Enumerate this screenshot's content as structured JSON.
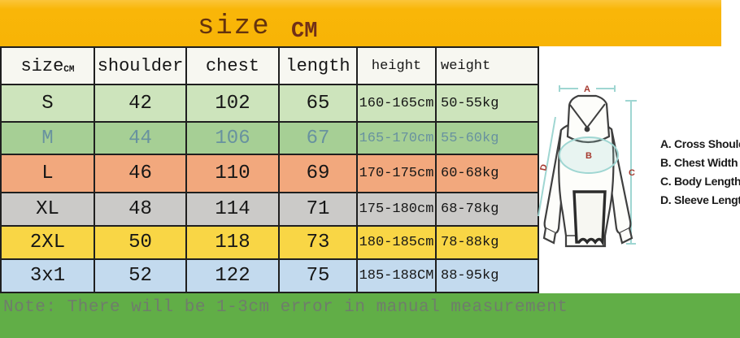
{
  "banner": {
    "title": "size",
    "unit": "CM"
  },
  "size_table": {
    "columns": [
      "size",
      "shoulder",
      "chest",
      "length",
      "height",
      "weight"
    ],
    "size_header_sub": "CM",
    "rows": [
      {
        "cells": [
          "S",
          "42",
          "102",
          "65",
          "160-165cm",
          "50-55kg"
        ],
        "bg": "#cde4bc",
        "fg": "#161616"
      },
      {
        "cells": [
          "M",
          "44",
          "106",
          "67",
          "165-170cm",
          "55-60kg"
        ],
        "bg": "#a6cf95",
        "fg": "#68929f"
      },
      {
        "cells": [
          "L",
          "46",
          "110",
          "69",
          "170-175cm",
          "60-68kg"
        ],
        "bg": "#f2a87d",
        "fg": "#161616"
      },
      {
        "cells": [
          "XL",
          "48",
          "114",
          "71",
          "175-180cm",
          "68-78kg"
        ],
        "bg": "#cbcac8",
        "fg": "#161616"
      },
      {
        "cells": [
          "2XL",
          "50",
          "118",
          "73",
          "180-185cm",
          "78-88kg"
        ],
        "bg": "#f9d645",
        "fg": "#161616"
      },
      {
        "cells": [
          "3x1",
          "52",
          "122",
          "75",
          "185-188CM",
          "88-95kg"
        ],
        "bg": "#c3daee",
        "fg": "#161616"
      }
    ]
  },
  "diagram": {
    "markers": [
      "A",
      "B",
      "C",
      "D"
    ],
    "legend": [
      {
        "label": "A. Cross Shoulder"
      },
      {
        "label": "B. Chest Width"
      },
      {
        "label": "C. Body Length"
      },
      {
        "label": "D. Sleeve Length"
      }
    ],
    "marker_color": "#a63a30",
    "line_color": "#9fd6d2",
    "outline_color": "#3f3f3f"
  },
  "note": {
    "text": "Note: There will be 1-3cm error in manual measurement"
  },
  "colors": {
    "banner_bg": "#f9b608",
    "title_fg": "#64330e",
    "note_bg": "#61ae47",
    "note_fg": "#6f7d6b",
    "table_border": "#1f1f1f",
    "header_bg": "#f7f7f1"
  }
}
